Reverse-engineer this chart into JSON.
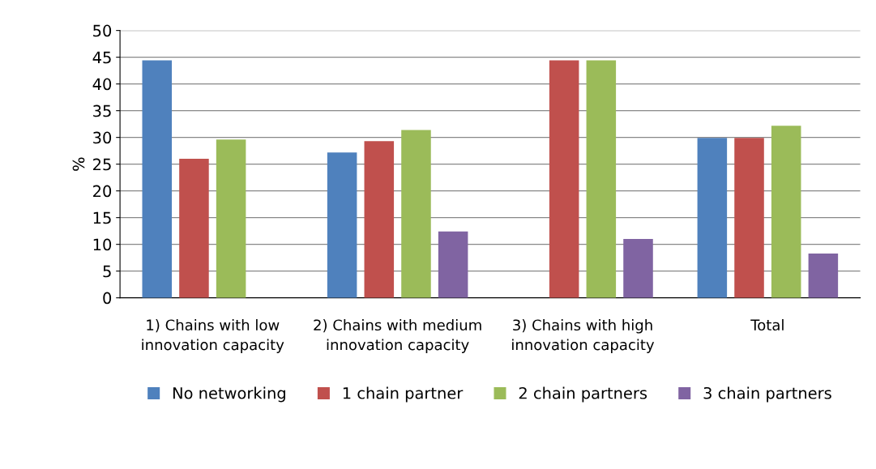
{
  "chart_data": {
    "type": "bar",
    "ylabel": "%",
    "categories": [
      "1) Chains with low innovation capacity",
      "2) Chains with medium innovation capacity",
      "3) Chains with high innovation capacity",
      "Total"
    ],
    "series": [
      {
        "name": "No networking",
        "color": "#4f81bd",
        "values": [
          44.4,
          27.2,
          null,
          29.9
        ]
      },
      {
        "name": "1 chain partner",
        "color": "#c0504d",
        "values": [
          26.0,
          29.3,
          44.4,
          29.9
        ]
      },
      {
        "name": "2 chain partners",
        "color": "#9bbb59",
        "values": [
          29.6,
          31.4,
          44.4,
          32.2
        ]
      },
      {
        "name": "3 chain partners",
        "color": "#8064a2",
        "values": [
          null,
          12.4,
          11.0,
          8.3
        ]
      }
    ],
    "ylim": [
      0,
      50
    ],
    "yticks": [
      0,
      5,
      10,
      15,
      20,
      25,
      30,
      35,
      40,
      45,
      50
    ],
    "grid": "y",
    "legend": "bottom"
  }
}
